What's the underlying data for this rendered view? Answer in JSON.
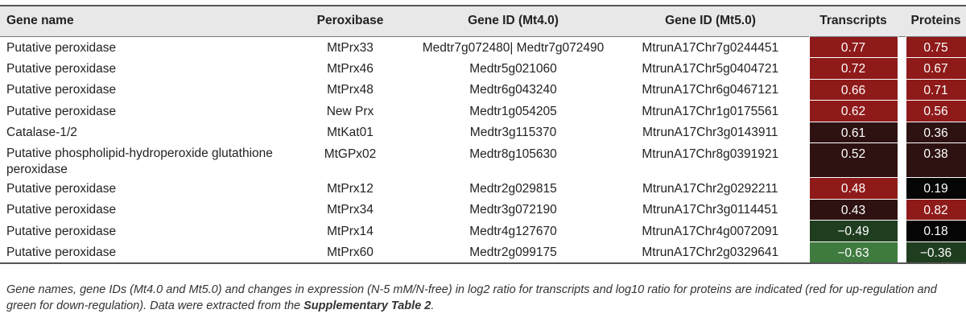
{
  "headers": {
    "name": "Gene name",
    "peroxibase": "Peroxibase",
    "mt4": "Gene ID (Mt4.0)",
    "mt5": "Gene ID (Mt5.0)",
    "transcripts": "Transcripts",
    "proteins": "Proteins"
  },
  "rows": [
    {
      "name": "Putative peroxidase",
      "prx": "MtPrx33",
      "mt4": "Medtr7g072480| Medtr7g072490",
      "mt5": "MtrunA17Chr7g0244451",
      "tr": "0.77",
      "pr": "0.75",
      "tr_color": "#8f1a1a",
      "pr_color": "#8f1a1a"
    },
    {
      "name": "Putative peroxidase",
      "prx": "MtPrx46",
      "mt4": "Medtr5g021060",
      "mt5": "MtrunA17Chr5g0404721",
      "tr": "0.72",
      "pr": "0.67",
      "tr_color": "#8f1a1a",
      "pr_color": "#8f1a1a"
    },
    {
      "name": "Putative peroxidase",
      "prx": "MtPrx48",
      "mt4": "Medtr6g043240",
      "mt5": "MtrunA17Chr6g0467121",
      "tr": "0.66",
      "pr": "0.71",
      "tr_color": "#8f1a1a",
      "pr_color": "#8f1a1a"
    },
    {
      "name": "Putative peroxidase",
      "prx": "New Prx",
      "mt4": "Medtr1g054205",
      "mt5": "MtrunA17Chr1g0175561",
      "tr": "0.62",
      "pr": "0.56",
      "tr_color": "#8f1a1a",
      "pr_color": "#8f1a1a"
    },
    {
      "name": "Catalase-1/2",
      "prx": "MtKat01",
      "mt4": "Medtr3g115370",
      "mt5": "MtrunA17Chr3g0143911",
      "tr": "0.61",
      "pr": "0.36",
      "tr_color": "#2e1212",
      "pr_color": "#2e1212"
    },
    {
      "name": "Putative phospholipid-hydroperoxide glutathione peroxidase",
      "prx": "MtGPx02",
      "mt4": "Medtr8g105630",
      "mt5": "MtrunA17Chr8g0391921",
      "tr": "0.52",
      "pr": "0.38",
      "tr_color": "#2e1212",
      "pr_color": "#2e1212",
      "tall": true
    },
    {
      "name": "Putative peroxidase",
      "prx": "MtPrx12",
      "mt4": "Medtr2g029815",
      "mt5": "MtrunA17Chr2g0292211",
      "tr": "0.48",
      "pr": "0.19",
      "tr_color": "#8f1a1a",
      "pr_color": "#050505"
    },
    {
      "name": "Putative peroxidase",
      "prx": "MtPrx34",
      "mt4": "Medtr3g072190",
      "mt5": "MtrunA17Chr3g0114451",
      "tr": "0.43",
      "pr": "0.82",
      "tr_color": "#2e1212",
      "pr_color": "#8f1a1a"
    },
    {
      "name": "Putative peroxidase",
      "prx": "MtPrx14",
      "mt4": "Medtr4g127670",
      "mt5": "MtrunA17Chr4g0072091",
      "tr": "−0.49",
      "pr": "0.18",
      "tr_color": "#1f3d1f",
      "pr_color": "#050505"
    },
    {
      "name": "Putative peroxidase",
      "prx": "MtPrx60",
      "mt4": "Medtr2g099175",
      "mt5": "MtrunA17Chr2g0329641",
      "tr": "−0.63",
      "pr": "−0.36",
      "tr_color": "#3f7a3f",
      "pr_color": "#1f3d1f"
    }
  ],
  "caption": {
    "text": "Gene names, gene IDs (Mt4.0 and Mt5.0) and changes in expression (N-5 mM/N-free) in log2 ratio for transcripts and log10 ratio for proteins are indicated (red for up-regulation and green for down-regulation). Data were extracted from the ",
    "bold": "Supplementary Table 2",
    "end": "."
  }
}
